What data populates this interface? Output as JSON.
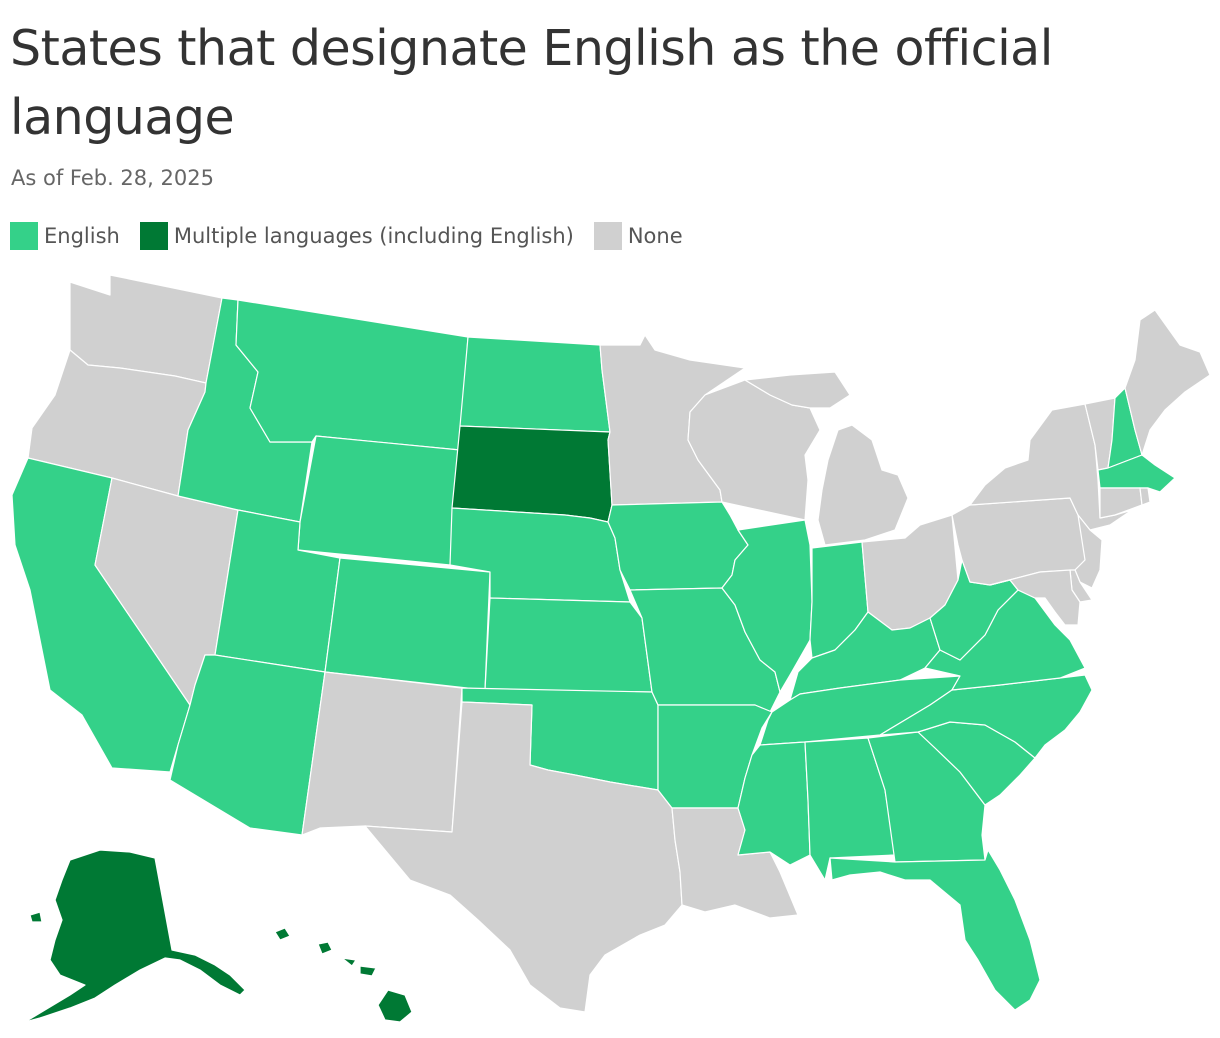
{
  "title": "States that designate English as the official language",
  "subtitle": "As of Feb. 28, 2025",
  "legend": [
    {
      "label": "English",
      "category": "english"
    },
    {
      "label": "Multiple languages (including English)",
      "category": "multiple"
    },
    {
      "label": "None",
      "category": "none"
    }
  ],
  "colors": {
    "english": "#34d189",
    "multiple": "#007934",
    "none": "#d0d0d0"
  },
  "states": {
    "WA": "none",
    "OR": "none",
    "CA": "english",
    "NV": "none",
    "ID": "english",
    "MT": "english",
    "WY": "english",
    "UT": "english",
    "AZ": "english",
    "CO": "english",
    "NM": "none",
    "ND": "english",
    "SD": "multiple",
    "NE": "english",
    "KS": "english",
    "OK": "english",
    "TX": "none",
    "MN": "none",
    "IA": "english",
    "MO": "english",
    "AR": "english",
    "LA": "none",
    "WI": "none",
    "IL": "english",
    "MI": "none",
    "IN": "english",
    "OH": "none",
    "KY": "english",
    "TN": "english",
    "MS": "english",
    "AL": "english",
    "GA": "english",
    "FL": "english",
    "SC": "english",
    "NC": "english",
    "VA": "english",
    "WV": "english",
    "PA": "none",
    "NY": "none",
    "VT": "none",
    "NH": "english",
    "ME": "none",
    "MA": "english",
    "CT": "none",
    "RI": "none",
    "NJ": "none",
    "DE": "none",
    "MD": "none",
    "AK": "multiple",
    "HI": "multiple"
  }
}
